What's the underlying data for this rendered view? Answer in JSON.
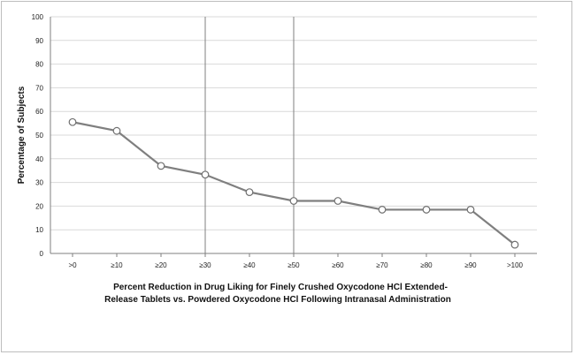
{
  "chart_data": {
    "type": "line",
    "title": "",
    "categories": [
      ">0",
      "≥10",
      "≥20",
      "≥30",
      "≥40",
      "≥50",
      "≥60",
      "≥70",
      "≥80",
      "≥90",
      ">100"
    ],
    "series": [
      {
        "values": [
          55.5,
          51.8,
          37.0,
          33.3,
          25.9,
          22.2,
          22.2,
          18.5,
          18.5,
          18.5,
          3.7
        ]
      }
    ],
    "ylabel": "Percentage of Subjects",
    "xlabel_lines": [
      "Percent Reduction in Drug Liking for Finely Crushed Oxycodone HCl Extended-",
      "Release Tablets vs. Powdered Oxycodone HCl Following Intranasal Administration"
    ],
    "ylim": [
      0,
      100
    ],
    "yticks": [
      0,
      10,
      20,
      30,
      40,
      50,
      60,
      70,
      80,
      90,
      100
    ],
    "grid": true,
    "vertical_reference_lines_at": [
      "≥30",
      "≥50"
    ],
    "legend": "none",
    "colors": {
      "line": "#7f7f7f",
      "marker_fill": "#ffffff",
      "marker_stroke": "#6f6f6f",
      "grid": "#d9d9d9",
      "reference_line": "#7f7f7f",
      "axis": "#7f7f7f"
    }
  }
}
